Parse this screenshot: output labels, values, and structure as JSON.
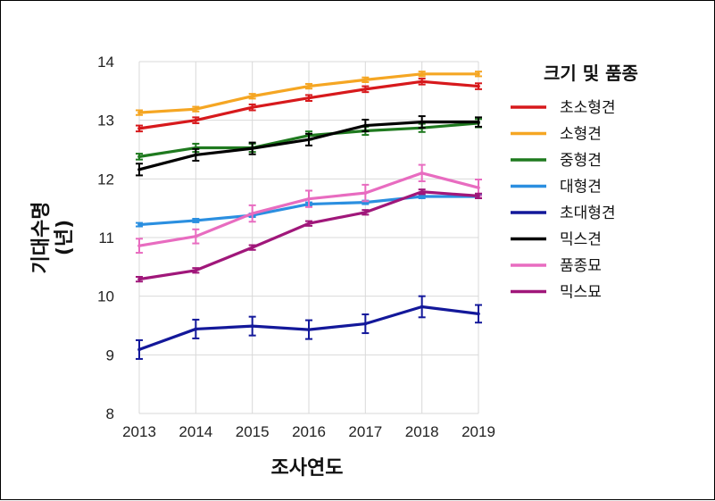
{
  "chart_data": {
    "type": "line",
    "title": "",
    "xlabel": "조사연도",
    "ylabel_line1": "기대수명",
    "ylabel_line2": "(년)",
    "x": [
      "2013",
      "2014",
      "2015",
      "2016",
      "2017",
      "2018",
      "2019"
    ],
    "ylim": [
      8,
      14
    ],
    "yticks": [
      "8",
      "9",
      "10",
      "11",
      "12",
      "13",
      "14"
    ],
    "grid": true,
    "legend": {
      "title": "크기 및 품종",
      "placement": "right"
    },
    "series": [
      {
        "name": "초소형견",
        "color": "#d7191c",
        "values": [
          12.86,
          13.0,
          13.22,
          13.38,
          13.53,
          13.66,
          13.58
        ],
        "err": [
          0.05,
          0.05,
          0.05,
          0.05,
          0.05,
          0.05,
          0.05
        ]
      },
      {
        "name": "소형견",
        "color": "#f5a623",
        "values": [
          13.13,
          13.19,
          13.41,
          13.58,
          13.69,
          13.79,
          13.79
        ],
        "err": [
          0.04,
          0.04,
          0.04,
          0.04,
          0.04,
          0.04,
          0.04
        ]
      },
      {
        "name": "중형견",
        "color": "#1f7a1f",
        "values": [
          12.38,
          12.53,
          12.53,
          12.74,
          12.82,
          12.87,
          12.95
        ],
        "err": [
          0.05,
          0.07,
          0.07,
          0.07,
          0.07,
          0.07,
          0.07
        ]
      },
      {
        "name": "대형견",
        "color": "#2b8fe0",
        "values": [
          11.22,
          11.29,
          11.38,
          11.57,
          11.6,
          11.7,
          11.7
        ],
        "err": [
          0.03,
          0.03,
          0.03,
          0.03,
          0.03,
          0.03,
          0.03
        ]
      },
      {
        "name": "초대형견",
        "color": "#13189a",
        "values": [
          9.09,
          9.44,
          9.49,
          9.43,
          9.53,
          9.82,
          9.7
        ],
        "err": [
          0.16,
          0.16,
          0.16,
          0.16,
          0.16,
          0.18,
          0.15
        ]
      },
      {
        "name": "믹스견",
        "color": "#000000",
        "values": [
          12.16,
          12.41,
          12.52,
          12.67,
          12.91,
          12.97,
          12.97
        ],
        "err": [
          0.1,
          0.1,
          0.1,
          0.1,
          0.1,
          0.1,
          0.08
        ]
      },
      {
        "name": "품종묘",
        "color": "#e86cc0",
        "values": [
          10.86,
          11.02,
          11.41,
          11.66,
          11.76,
          12.1,
          11.85
        ],
        "err": [
          0.12,
          0.12,
          0.14,
          0.14,
          0.14,
          0.14,
          0.14
        ]
      },
      {
        "name": "믹스묘",
        "color": "#a0177a",
        "values": [
          10.29,
          10.44,
          10.83,
          11.24,
          11.43,
          11.78,
          11.71
        ],
        "err": [
          0.04,
          0.04,
          0.04,
          0.04,
          0.04,
          0.04,
          0.04
        ]
      }
    ]
  }
}
